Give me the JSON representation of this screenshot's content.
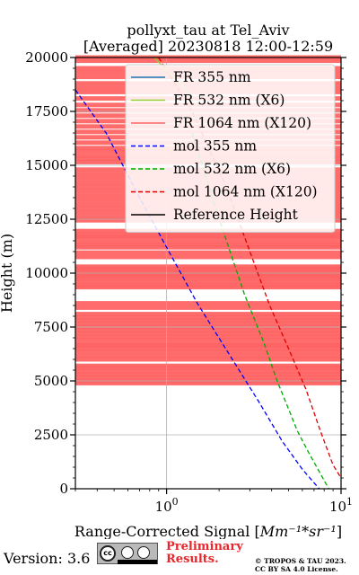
{
  "chart_data": {
    "type": "line",
    "title_line1": "pollyxt_tau at Tel_Aviv",
    "title_line2": "[Averaged] 20230818 12:00-12:59",
    "xlabel": "Range-Corrected Signal [Mm^{-1}*sr^{-1}]",
    "xlabel_main": "Range-Corrected Signal [",
    "xlabel_math": "Mm^{-1}*sr^{-1}",
    "xlabel_end": "]",
    "ylabel": "Height (m)",
    "xscale": "log",
    "xlim": [
      0.3,
      10
    ],
    "ylim": [
      0,
      20000
    ],
    "x_ticks": [
      1,
      10
    ],
    "x_tick_labels": [
      "10^0",
      "10^1"
    ],
    "y_ticks": [
      0,
      2500,
      5000,
      7500,
      10000,
      12500,
      15000,
      17500,
      20000
    ],
    "y_tick_labels": [
      "0",
      "2500",
      "5000",
      "7500",
      "10000",
      "12500",
      "15000",
      "17500",
      "20000"
    ],
    "grid": true,
    "legend_position": "top-right",
    "legend": [
      {
        "label": "FR 355 nm",
        "color": "#1f77b4",
        "style": "solid"
      },
      {
        "label": "FR 532 nm (X6)",
        "color": "#9acd32",
        "style": "solid"
      },
      {
        "label": "FR 1064 nm (X120)",
        "color": "#ff6060",
        "style": "solid"
      },
      {
        "label": "mol 355 nm",
        "color": "#0000ff",
        "style": "dashed"
      },
      {
        "label": "mol 532 nm (X6)",
        "color": "#00aa00",
        "style": "dashed"
      },
      {
        "label": "mol 1064 nm (X120)",
        "color": "#dd0000",
        "style": "dashed"
      },
      {
        "label": "Reference Height",
        "color": "#000000",
        "style": "solid"
      }
    ],
    "series": [
      {
        "name": "mol 355 nm",
        "color": "#0000ff",
        "style": "dashed",
        "points": [
          [
            0.3,
            18500
          ],
          [
            0.45,
            16500
          ],
          [
            0.7,
            13500
          ],
          [
            1.0,
            11200
          ],
          [
            1.5,
            8600
          ],
          [
            2.3,
            6200
          ],
          [
            3.4,
            4000
          ],
          [
            4.6,
            2200
          ],
          [
            6.0,
            900
          ],
          [
            7.5,
            0
          ]
        ]
      },
      {
        "name": "mol 532 nm (X6)",
        "color": "#00aa00",
        "style": "dashed",
        "points": [
          [
            1.4,
            16500
          ],
          [
            2.1,
            12000
          ],
          [
            2.8,
            9000
          ],
          [
            3.6,
            6800
          ],
          [
            4.3,
            5000
          ],
          [
            5.0,
            3700
          ],
          [
            5.6,
            2700
          ],
          [
            6.5,
            1700
          ],
          [
            8.5,
            0
          ]
        ]
      },
      {
        "name": "mol 1064 nm (X120)",
        "color": "#dd0000",
        "style": "dashed",
        "points": [
          [
            0.9,
            20000
          ],
          [
            1.4,
            17500
          ],
          [
            2.2,
            14000
          ],
          [
            3.0,
            11000
          ],
          [
            3.9,
            8500
          ],
          [
            5.0,
            6500
          ],
          [
            6.3,
            4600
          ],
          [
            7.6,
            2700
          ],
          [
            9.0,
            1100
          ],
          [
            10.0,
            500
          ]
        ]
      },
      {
        "name": "FR 532 nm (X6)",
        "color": "#9acd32",
        "style": "solid",
        "points": [
          [
            0.85,
            20000
          ],
          [
            1.0,
            19400
          ],
          [
            1.2,
            18800
          ],
          [
            1.4,
            18200
          ]
        ]
      }
    ],
    "fr1064_band_heights": [
      20000,
      19850,
      19500,
      19300,
      19100,
      18800,
      18600,
      18400,
      18100,
      17800,
      17550,
      17300,
      17050,
      16800,
      16550,
      16300,
      16050,
      15800,
      15650,
      15450,
      15300,
      15150,
      14800,
      14600,
      14400,
      14200,
      14000,
      13800,
      13600,
      13400,
      13200,
      13000,
      12800,
      12600,
      12450,
      11950,
      11800,
      11700,
      11650,
      11450,
      11300,
      11200,
      10950,
      10750,
      10300,
      10200,
      10100,
      10050,
      9950,
      9850,
      9750,
      9600,
      9450,
      9350,
      8600,
      8400,
      8100,
      7950,
      7800,
      7650,
      7500,
      7350,
      7200,
      7050,
      6900,
      6700,
      6650,
      6500,
      6350,
      6150,
      6000,
      5700,
      5600,
      5450,
      5300,
      5150,
      5000,
      4900
    ]
  },
  "footer": {
    "version": "Version: 3.6",
    "license_badge": "cc-by-sa-icon",
    "preliminary_line1": "Preliminary",
    "preliminary_line2": "Results.",
    "copyright_line1": "© TROPOS & TAU 2023.",
    "copyright_line2": "CC BY SA 4.0 License."
  }
}
